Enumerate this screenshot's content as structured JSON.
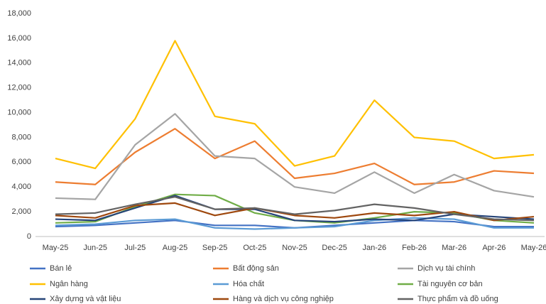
{
  "chart_data": {
    "type": "line",
    "categories": [
      "May-25",
      "Jun-25",
      "Jul-25",
      "Aug-25",
      "Sep-25",
      "Oct-25",
      "Nov-25",
      "Dec-25",
      "Jan-26",
      "Feb-26",
      "Mar-26",
      "Apr-26",
      "May-26"
    ],
    "series": [
      {
        "name": "Bán lẻ",
        "color": "#4472c4",
        "values": [
          800,
          900,
          1100,
          1300,
          900,
          900,
          700,
          900,
          1100,
          1300,
          1200,
          800,
          800
        ]
      },
      {
        "name": "Bất động sản",
        "color": "#ed7d31",
        "values": [
          4400,
          4200,
          6800,
          8700,
          6300,
          7700,
          4700,
          5100,
          5900,
          4200,
          4400,
          5300,
          5100
        ]
      },
      {
        "name": "Dịch vụ tài chính",
        "color": "#a5a5a5",
        "values": [
          3100,
          3000,
          7400,
          9900,
          6500,
          6300,
          4000,
          3500,
          5200,
          3500,
          5000,
          3700,
          3200
        ]
      },
      {
        "name": "Ngân hàng",
        "color": "#ffc000",
        "values": [
          6300,
          5500,
          9500,
          15800,
          9700,
          9100,
          5700,
          6500,
          11000,
          8000,
          7700,
          6300,
          6600
        ]
      },
      {
        "name": "Hóa chất",
        "color": "#5b9bd5",
        "values": [
          900,
          1000,
          1300,
          1400,
          700,
          600,
          700,
          800,
          1300,
          1500,
          1400,
          700,
          700
        ]
      },
      {
        "name": "Tài nguyên cơ bản",
        "color": "#70ad47",
        "values": [
          1100,
          1200,
          2400,
          3400,
          3300,
          1900,
          1300,
          1100,
          1500,
          2000,
          1900,
          1300,
          1100
        ]
      },
      {
        "name": "Xây dựng và vật liệu",
        "color": "#264478",
        "values": [
          1400,
          1300,
          2300,
          3300,
          2200,
          2200,
          1300,
          1200,
          1400,
          1300,
          1800,
          1600,
          1400
        ]
      },
      {
        "name": "Hàng và dịch vụ công nghiệp",
        "color": "#9e480e",
        "values": [
          1700,
          1500,
          2500,
          2700,
          1700,
          2300,
          1700,
          1500,
          1900,
          1700,
          2000,
          1300,
          1600
        ]
      },
      {
        "name": "Thực phẩm và đồ uống",
        "color": "#636363",
        "values": [
          1800,
          1900,
          2600,
          3200,
          2200,
          2300,
          1800,
          2100,
          2600,
          2300,
          1800,
          1400,
          1300
        ]
      }
    ],
    "ylim": [
      0,
      18000
    ],
    "yticks": [
      0,
      {
        "value": 2000,
        "label": "2,000"
      },
      {
        "value": 4000,
        "label": "4,000"
      },
      {
        "value": 6000,
        "label": "6,000"
      },
      {
        "value": 8000,
        "label": "8,000"
      },
      {
        "value": 10000,
        "label": "10,000"
      },
      {
        "value": 12000,
        "label": "12,000"
      },
      {
        "value": 14000,
        "label": "14,000"
      },
      {
        "value": 16000,
        "label": "16,000"
      },
      {
        "value": 18000,
        "label": "18,000"
      }
    ],
    "grid": false
  }
}
